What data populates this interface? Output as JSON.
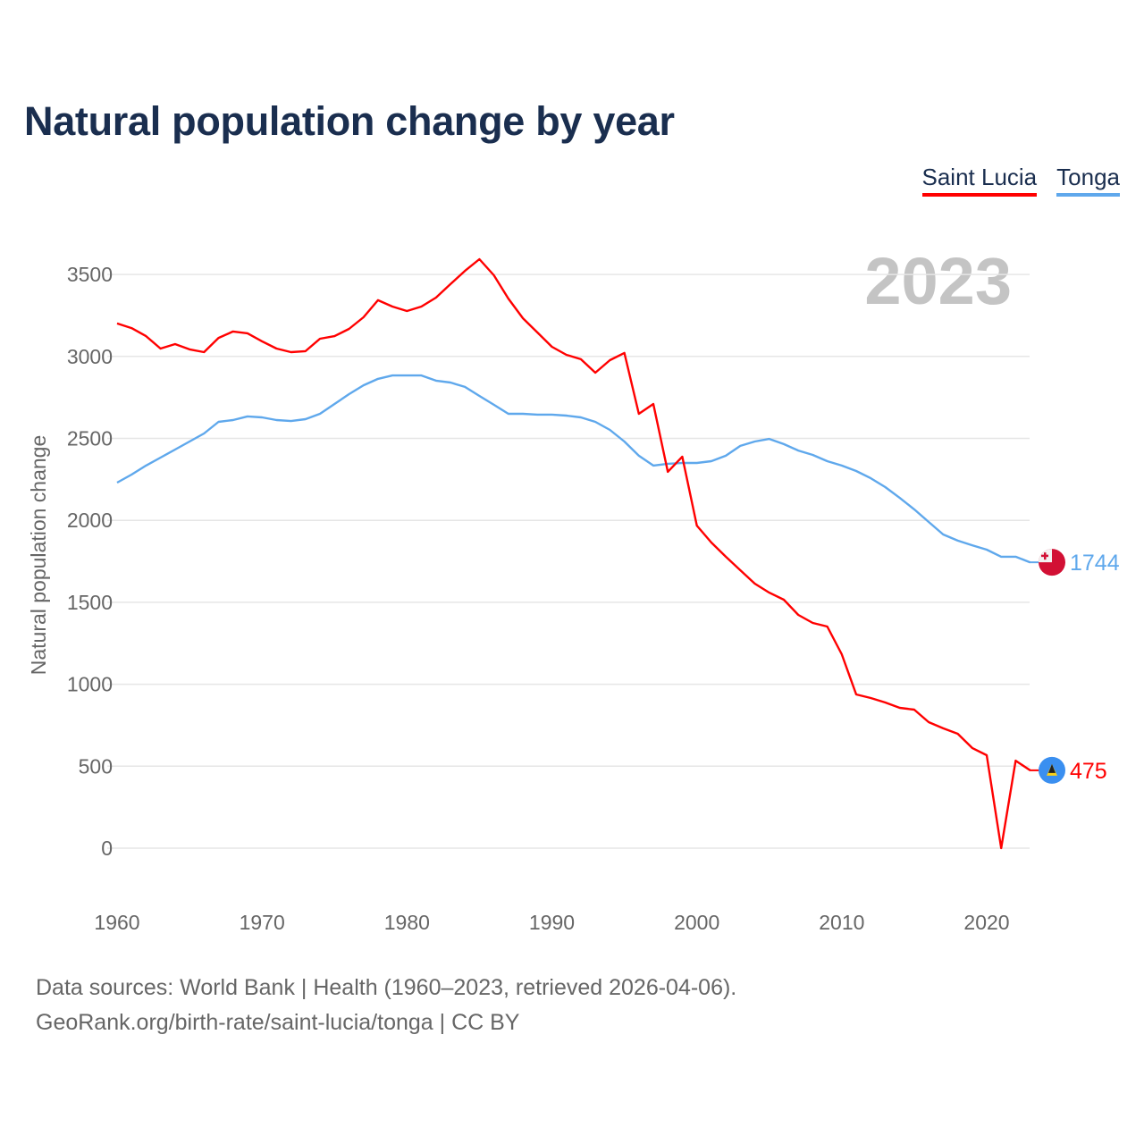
{
  "title": "Natural population change by year",
  "legend": [
    {
      "label": "Saint Lucia",
      "color": "#ff0000"
    },
    {
      "label": "Tonga",
      "color": "#5fa8ec"
    }
  ],
  "year_watermark": "2023",
  "footer": {
    "line1": "Data sources: World Bank | Health (1960–2023, retrieved 2026-04-06).",
    "line2": "GeoRank.org/birth-rate/saint-lucia/tonga | CC BY"
  },
  "chart_data": {
    "type": "line",
    "title": "Natural population change by year",
    "xlabel": "",
    "ylabel": "Natural population change",
    "xlim": [
      1960,
      2023
    ],
    "ylim": [
      -250,
      3700
    ],
    "x_ticks": [
      1960,
      1970,
      1980,
      1990,
      2000,
      2010,
      2020
    ],
    "y_ticks": [
      0,
      500,
      1000,
      1500,
      2000,
      2500,
      3000,
      3500
    ],
    "grid": true,
    "legend_position": "top-right",
    "x_start": 1960,
    "series": [
      {
        "name": "Saint Lucia",
        "color": "#ff0000",
        "end_label": "475",
        "flag": "saint-lucia-flag-icon",
        "values": [
          3201,
          3173,
          3124,
          3048,
          3075,
          3043,
          3026,
          3113,
          3152,
          3141,
          3092,
          3048,
          3026,
          3032,
          3108,
          3124,
          3168,
          3239,
          3343,
          3304,
          3277,
          3304,
          3359,
          3441,
          3522,
          3593,
          3495,
          3353,
          3233,
          3146,
          3059,
          3010,
          2983,
          2901,
          2977,
          3021,
          2650,
          2710,
          2296,
          2388,
          1968,
          1865,
          1778,
          1696,
          1614,
          1559,
          1516,
          1423,
          1374,
          1352,
          1183,
          938,
          916,
          889,
          856,
          845,
          769,
          731,
          698,
          611,
          567,
          0,
          534,
          475
        ]
      },
      {
        "name": "Tonga",
        "color": "#5fa8ec",
        "end_label": "1744",
        "flag": "tonga-flag-icon",
        "values": [
          2230,
          2279,
          2334,
          2383,
          2432,
          2481,
          2530,
          2601,
          2612,
          2634,
          2628,
          2612,
          2606,
          2617,
          2650,
          2710,
          2770,
          2824,
          2863,
          2884,
          2884,
          2884,
          2852,
          2841,
          2814,
          2759,
          2705,
          2650,
          2650,
          2645,
          2645,
          2639,
          2628,
          2601,
          2552,
          2481,
          2394,
          2334,
          2345,
          2350,
          2350,
          2361,
          2394,
          2454,
          2481,
          2497,
          2465,
          2426,
          2399,
          2361,
          2334,
          2301,
          2257,
          2203,
          2137,
          2067,
          1990,
          1914,
          1876,
          1848,
          1821,
          1778,
          1778,
          1744
        ]
      }
    ]
  }
}
